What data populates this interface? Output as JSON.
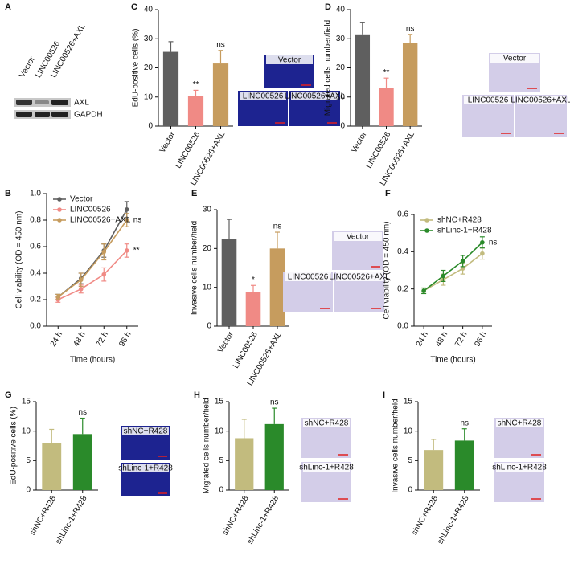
{
  "blot": {
    "panel": "A",
    "lanes": [
      "Vector",
      "LINC00526",
      "LINC00526+AXL"
    ],
    "rows": [
      "AXL",
      "GAPDH"
    ]
  },
  "chart_data": [
    {
      "type": "bar",
      "panel": "C",
      "ylabel": "EdU-positive cells (%)",
      "categories": [
        "Vector",
        "LINC00526",
        "LINC00526+AXL"
      ],
      "values": [
        25.5,
        10.3,
        21.5
      ],
      "errors": [
        3.5,
        2,
        4.5
      ],
      "colors": [
        "#5f5f5f",
        "#f08a85",
        "#c69c5e"
      ],
      "annotations": [
        null,
        "**",
        "ns"
      ],
      "ylim": [
        0,
        40
      ],
      "yticks": [
        0,
        10,
        20,
        30,
        40
      ],
      "images": [
        "Vector",
        "LINC00526",
        "LINC00526+AXL"
      ]
    },
    {
      "type": "bar",
      "panel": "D",
      "ylabel": "Migrated cells number/field",
      "categories": [
        "Vector",
        "LINC00526",
        "LINC00526+AXL"
      ],
      "values": [
        31.5,
        13,
        28.5
      ],
      "errors": [
        4,
        3.5,
        3
      ],
      "colors": [
        "#5f5f5f",
        "#f08a85",
        "#c69c5e"
      ],
      "annotations": [
        null,
        "**",
        "ns"
      ],
      "ylim": [
        0,
        40
      ],
      "yticks": [
        0,
        10,
        20,
        30,
        40
      ],
      "images": [
        "Vector",
        "LINC00526",
        "LINC00526+AXL"
      ]
    },
    {
      "type": "line",
      "panel": "B",
      "ylabel": "Cell viability (OD = 450 nm)",
      "xlabel": "Time (hours)",
      "categories": [
        "24 h",
        "48 h",
        "72 h",
        "96 h"
      ],
      "series": [
        {
          "name": "Vector",
          "color": "#5f5f5f",
          "values": [
            0.22,
            0.36,
            0.57,
            0.88
          ],
          "errors": [
            0.02,
            0.04,
            0.05,
            0.06
          ]
        },
        {
          "name": "LINC00526",
          "color": "#f08a85",
          "values": [
            0.2,
            0.28,
            0.39,
            0.57
          ],
          "errors": [
            0.02,
            0.03,
            0.05,
            0.05
          ],
          "annotation": "**"
        },
        {
          "name": "LINC00526+AXL",
          "color": "#c69c5e",
          "values": [
            0.22,
            0.35,
            0.56,
            0.8
          ],
          "errors": [
            0.02,
            0.05,
            0.06,
            0.05
          ],
          "annotation": "ns"
        }
      ],
      "ylim": [
        0,
        1
      ],
      "yticks": [
        {
          "value": 0,
          "label": "0.0"
        },
        {
          "value": 0.2,
          "label": "0.2"
        },
        {
          "value": 0.4,
          "label": "0.4"
        },
        {
          "value": 0.6,
          "label": "0.6"
        },
        {
          "value": 0.8,
          "label": "0.8"
        },
        {
          "value": 1,
          "label": "1.0"
        }
      ],
      "legend": "upper left"
    },
    {
      "type": "bar",
      "panel": "E",
      "ylabel": "Invasive cells number/field",
      "categories": [
        "Vector",
        "LINC00526",
        "LINC00526+AXL"
      ],
      "values": [
        22.5,
        8.8,
        20
      ],
      "errors": [
        5,
        1.7,
        4.2
      ],
      "colors": [
        "#5f5f5f",
        "#f08a85",
        "#c69c5e"
      ],
      "annotations": [
        null,
        "*",
        "ns"
      ],
      "ylim": [
        0,
        30
      ],
      "yticks": [
        0,
        10,
        20,
        30
      ],
      "images": [
        "Vector",
        "LINC00526",
        "LINC00526+AXL"
      ]
    },
    {
      "type": "line",
      "panel": "F",
      "ylabel": "Cell viability (OD = 450 nm)",
      "xlabel": "Time (hours)",
      "categories": [
        "24 h",
        "48 h",
        "72 h",
        "96 h"
      ],
      "series": [
        {
          "name": "shNC+R428",
          "color": "#c2bb7e",
          "values": [
            0.19,
            0.25,
            0.31,
            0.39
          ],
          "errors": [
            0.015,
            0.03,
            0.03,
            0.03
          ]
        },
        {
          "name": "shLinc-1+R428",
          "color": "#2a8a2a",
          "values": [
            0.19,
            0.27,
            0.35,
            0.45
          ],
          "errors": [
            0.015,
            0.03,
            0.03,
            0.03
          ],
          "annotation": "ns"
        }
      ],
      "ylim": [
        0,
        0.6
      ],
      "yticks": [
        {
          "value": 0,
          "label": "0.0"
        },
        {
          "value": 0.2,
          "label": "0.2"
        },
        {
          "value": 0.4,
          "label": "0.4"
        },
        {
          "value": 0.6,
          "label": "0.6"
        }
      ],
      "legend": "upper left"
    },
    {
      "type": "bar",
      "panel": "G",
      "ylabel": "EdU-positive cells (%)",
      "categories": [
        "shNC+R428",
        "shLinc-1+R428"
      ],
      "values": [
        8,
        9.5
      ],
      "errors": [
        2.3,
        2.7
      ],
      "colors": [
        "#c2bb7e",
        "#2a8a2a"
      ],
      "annotations": [
        null,
        "ns"
      ],
      "ylim": [
        0,
        15
      ],
      "yticks": [
        0,
        5,
        10,
        15
      ],
      "images": [
        "shNC+R428",
        "shLinc-1+R428"
      ]
    },
    {
      "type": "bar",
      "panel": "H",
      "ylabel": "Migrated cells number/field",
      "categories": [
        "shNC+R428",
        "shLinc-1+R428"
      ],
      "values": [
        8.8,
        11.2
      ],
      "errors": [
        3.2,
        2.7
      ],
      "colors": [
        "#c2bb7e",
        "#2a8a2a"
      ],
      "annotations": [
        null,
        "ns"
      ],
      "ylim": [
        0,
        15
      ],
      "yticks": [
        0,
        5,
        10,
        15
      ],
      "images": [
        "shNC+R428",
        "shLinc-1+R428"
      ]
    },
    {
      "type": "bar",
      "panel": "I",
      "ylabel": "Invasive cells number/field",
      "categories": [
        "shNC+R428",
        "shLinc-1+R428"
      ],
      "values": [
        6.8,
        8.4
      ],
      "errors": [
        1.8,
        2
      ],
      "colors": [
        "#c2bb7e",
        "#2a8a2a"
      ],
      "annotations": [
        null,
        "ns"
      ],
      "ylim": [
        0,
        15
      ],
      "yticks": [
        0,
        5,
        10,
        15
      ],
      "images": [
        "shNC+R428",
        "shLinc-1+R428"
      ]
    }
  ]
}
